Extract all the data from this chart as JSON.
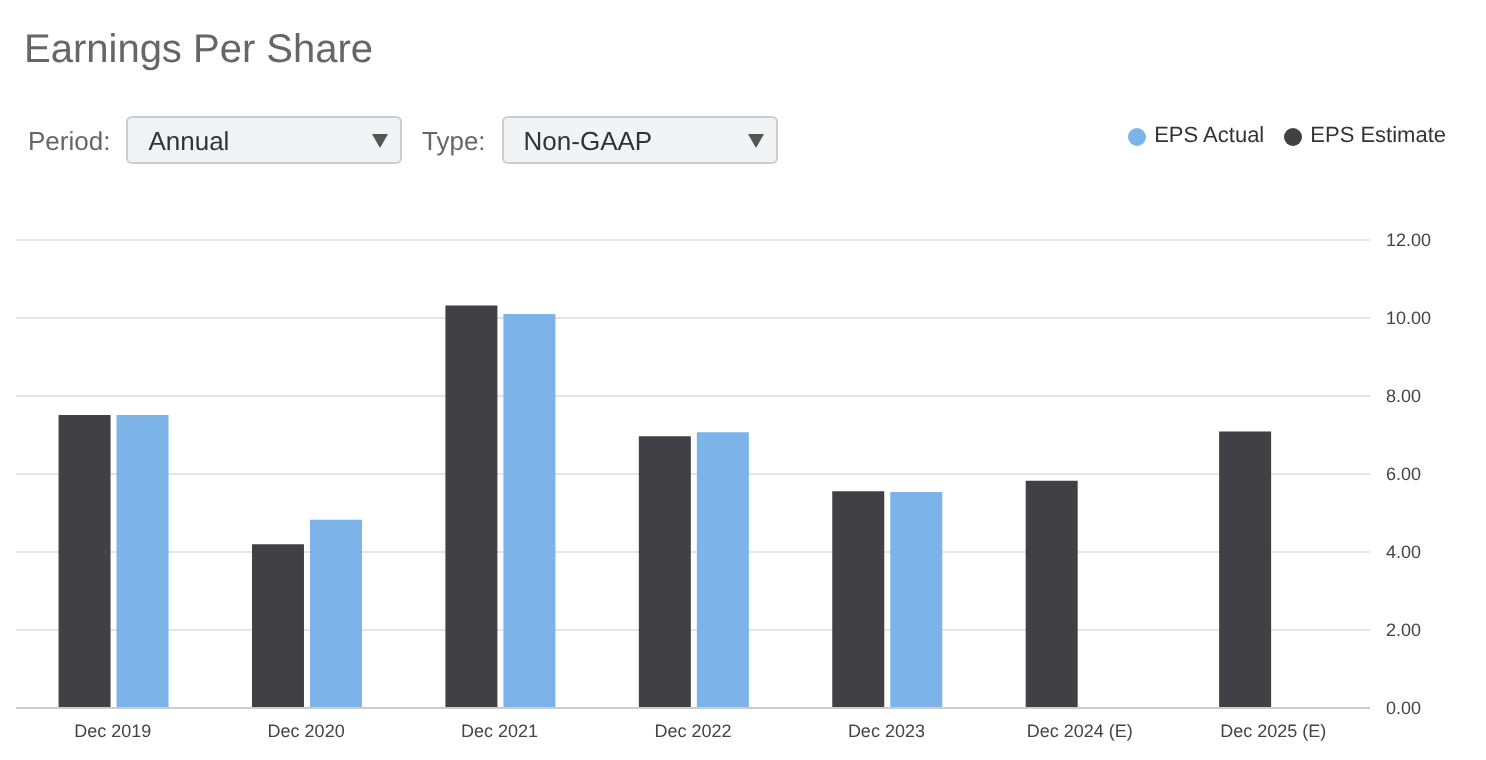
{
  "chart_data": {
    "type": "bar",
    "title": "Earnings Per Share",
    "annotations": [
      "Period:",
      "Annual",
      "Type:",
      "Non-GAAP"
    ],
    "categories": [
      "Dec 2019",
      "Dec 2020",
      "Dec 2021",
      "Dec 2022",
      "Dec 2023",
      "Dec 2024 (E)",
      "Dec 2025 (E)"
    ],
    "series": [
      {
        "name": "EPS Estimate",
        "color": "#414045",
        "values": [
          7.51,
          4.2,
          10.32,
          6.97,
          5.56,
          5.83,
          7.09
        ]
      },
      {
        "name": "EPS Actual",
        "color": "#7cb4ea",
        "values": [
          7.51,
          4.83,
          10.1,
          7.07,
          5.54,
          null,
          null
        ]
      }
    ],
    "ylim": [
      0,
      12
    ],
    "yticks": [
      {
        "value": 0,
        "label": "0.00"
      },
      {
        "value": 2,
        "label": "2.00"
      },
      {
        "value": 4,
        "label": "4.00"
      },
      {
        "value": 6,
        "label": "6.00"
      },
      {
        "value": 8,
        "label": "8.00"
      },
      {
        "value": 10,
        "label": "10.00"
      },
      {
        "value": 12,
        "label": "12.00"
      }
    ],
    "grid": "y",
    "legend": "top right"
  }
}
